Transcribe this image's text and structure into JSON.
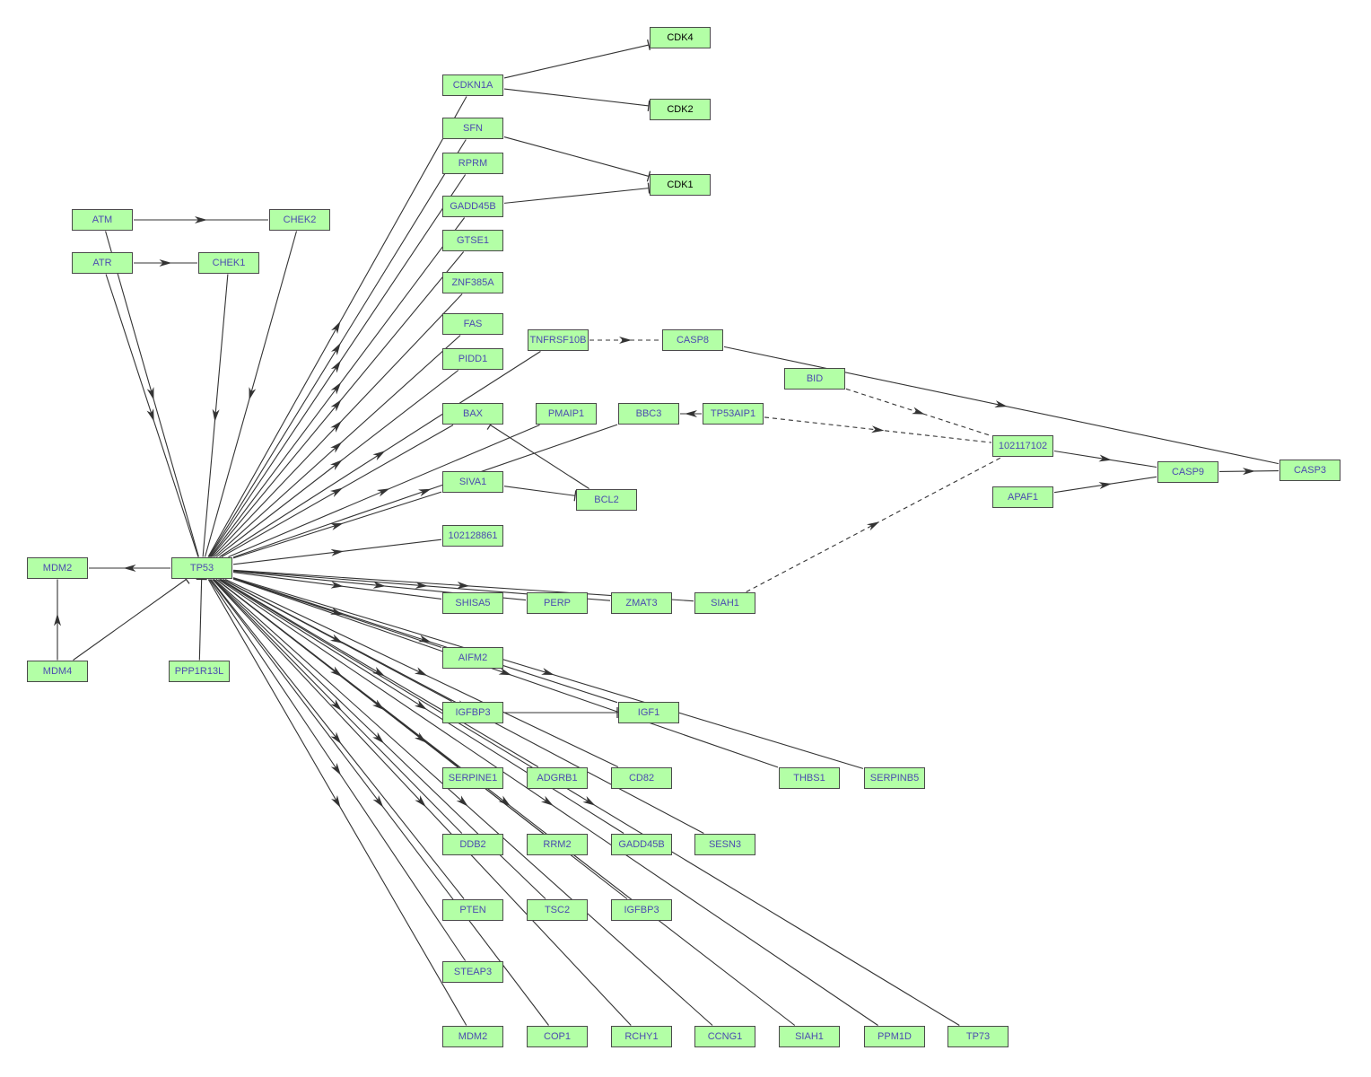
{
  "colors": {
    "node_fill": "#b3ffa6",
    "node_border": "#4a4a4a",
    "gene_text": "#4b4bb0",
    "compound_text": "#000000",
    "edge": "#333333"
  },
  "nodes": [
    {
      "id": "CDK4",
      "label": "CDK4",
      "text": "compound"
    },
    {
      "id": "CDK2",
      "label": "CDK2",
      "text": "compound"
    },
    {
      "id": "CDK1",
      "label": "CDK1",
      "text": "compound"
    },
    {
      "id": "CDKN1A",
      "label": "CDKN1A"
    },
    {
      "id": "SFN",
      "label": "SFN"
    },
    {
      "id": "RPRM",
      "label": "RPRM"
    },
    {
      "id": "GADD45B",
      "label": "GADD45B"
    },
    {
      "id": "GTSE1",
      "label": "GTSE1"
    },
    {
      "id": "ZNF385A",
      "label": "ZNF385A"
    },
    {
      "id": "FAS",
      "label": "FAS"
    },
    {
      "id": "PIDD1",
      "label": "PIDD1"
    },
    {
      "id": "BAX",
      "label": "BAX"
    },
    {
      "id": "SIVA1",
      "label": "SIVA1"
    },
    {
      "id": "N102128861",
      "label": "102128861"
    },
    {
      "id": "SHISA5",
      "label": "SHISA5"
    },
    {
      "id": "AIFM2",
      "label": "AIFM2"
    },
    {
      "id": "IGFBP3",
      "label": "IGFBP3"
    },
    {
      "id": "SERPINE1",
      "label": "SERPINE1"
    },
    {
      "id": "DDB2",
      "label": "DDB2"
    },
    {
      "id": "PTEN",
      "label": "PTEN"
    },
    {
      "id": "STEAP3",
      "label": "STEAP3"
    },
    {
      "id": "MDM2_b",
      "label": "MDM2"
    },
    {
      "id": "ATM",
      "label": "ATM"
    },
    {
      "id": "CHEK2",
      "label": "CHEK2"
    },
    {
      "id": "ATR",
      "label": "ATR"
    },
    {
      "id": "CHEK1",
      "label": "CHEK1"
    },
    {
      "id": "TNFRSF10B",
      "label": "TNFRSF10B"
    },
    {
      "id": "CASP8",
      "label": "CASP8"
    },
    {
      "id": "BID",
      "label": "BID"
    },
    {
      "id": "PMAIP1",
      "label": "PMAIP1"
    },
    {
      "id": "BBC3",
      "label": "BBC3"
    },
    {
      "id": "TP53AIP1",
      "label": "TP53AIP1"
    },
    {
      "id": "BCL2",
      "label": "BCL2"
    },
    {
      "id": "N102117102",
      "label": "102117102"
    },
    {
      "id": "CASP9",
      "label": "CASP9"
    },
    {
      "id": "CASP3",
      "label": "CASP3"
    },
    {
      "id": "APAF1",
      "label": "APAF1"
    },
    {
      "id": "MDM2",
      "label": "MDM2"
    },
    {
      "id": "TP53",
      "label": "TP53"
    },
    {
      "id": "MDM4",
      "label": "MDM4"
    },
    {
      "id": "PPP1R13L",
      "label": "PPP1R13L"
    },
    {
      "id": "PERP",
      "label": "PERP"
    },
    {
      "id": "ZMAT3",
      "label": "ZMAT3"
    },
    {
      "id": "SIAH1",
      "label": "SIAH1"
    },
    {
      "id": "IGF1",
      "label": "IGF1"
    },
    {
      "id": "THBS1",
      "label": "THBS1"
    },
    {
      "id": "SERPINB5",
      "label": "SERPINB5"
    },
    {
      "id": "ADGRB1",
      "label": "ADGRB1"
    },
    {
      "id": "CD82",
      "label": "CD82"
    },
    {
      "id": "RRM2",
      "label": "RRM2"
    },
    {
      "id": "GADD45B_b",
      "label": "GADD45B"
    },
    {
      "id": "SESN3",
      "label": "SESN3"
    },
    {
      "id": "TSC2",
      "label": "TSC2"
    },
    {
      "id": "IGFBP3_b",
      "label": "IGFBP3"
    },
    {
      "id": "COP1",
      "label": "COP1"
    },
    {
      "id": "RCHY1",
      "label": "RCHY1"
    },
    {
      "id": "CCNG1",
      "label": "CCNG1"
    },
    {
      "id": "SIAH1_b",
      "label": "SIAH1"
    },
    {
      "id": "PPM1D",
      "label": "PPM1D"
    },
    {
      "id": "TP73",
      "label": "TP73"
    }
  ],
  "edges": [
    {
      "from": "ATM",
      "to": "CHEK2",
      "type": "activation"
    },
    {
      "from": "ATR",
      "to": "CHEK1",
      "type": "activation"
    },
    {
      "from": "ATM",
      "to": "TP53",
      "type": "activation"
    },
    {
      "from": "ATR",
      "to": "TP53",
      "type": "activation"
    },
    {
      "from": "CHEK2",
      "to": "TP53",
      "type": "activation"
    },
    {
      "from": "CHEK1",
      "to": "TP53",
      "type": "activation"
    },
    {
      "from": "TP53",
      "to": "MDM2",
      "type": "activation"
    },
    {
      "from": "MDM4",
      "to": "MDM2",
      "type": "activation"
    },
    {
      "from": "MDM4",
      "to": "TP53",
      "type": "inhibition"
    },
    {
      "from": "PPP1R13L",
      "to": "TP53",
      "type": "inhibition"
    },
    {
      "from": "CDKN1A",
      "to": "CDK4",
      "type": "inhibition"
    },
    {
      "from": "CDKN1A",
      "to": "CDK2",
      "type": "inhibition"
    },
    {
      "from": "SFN",
      "to": "CDK1",
      "type": "inhibition"
    },
    {
      "from": "GADD45B",
      "to": "CDK1",
      "type": "inhibition"
    },
    {
      "from": "TNFRSF10B",
      "to": "CASP8",
      "type": "indirect"
    },
    {
      "from": "CASP8",
      "to": "CASP3",
      "type": "activation"
    },
    {
      "from": "BID",
      "to": "N102117102",
      "type": "indirect"
    },
    {
      "from": "TP53AIP1",
      "to": "N102117102",
      "type": "indirect"
    },
    {
      "from": "SIAH1",
      "to": "N102117102",
      "type": "indirect"
    },
    {
      "from": "TP53AIP1",
      "to": "BBC3",
      "type": "activation"
    },
    {
      "from": "BCL2",
      "to": "BAX",
      "type": "inhibition"
    },
    {
      "from": "SIVA1",
      "to": "BCL2",
      "type": "inhibition"
    },
    {
      "from": "N102117102",
      "to": "CASP9",
      "type": "activation"
    },
    {
      "from": "APAF1",
      "to": "CASP9",
      "type": "activation"
    },
    {
      "from": "CASP9",
      "to": "CASP3",
      "type": "activation"
    },
    {
      "from": "IGFBP3",
      "to": "IGF1",
      "type": "inhibition"
    },
    {
      "from": "TP53",
      "to": "CDKN1A",
      "type": "activation"
    },
    {
      "from": "TP53",
      "to": "SFN",
      "type": "activation"
    },
    {
      "from": "TP53",
      "to": "RPRM",
      "type": "activation"
    },
    {
      "from": "TP53",
      "to": "GADD45B",
      "type": "activation"
    },
    {
      "from": "TP53",
      "to": "GTSE1",
      "type": "activation"
    },
    {
      "from": "TP53",
      "to": "ZNF385A",
      "type": "activation"
    },
    {
      "from": "TP53",
      "to": "FAS",
      "type": "activation"
    },
    {
      "from": "TP53",
      "to": "PIDD1",
      "type": "activation"
    },
    {
      "from": "TP53",
      "to": "TNFRSF10B",
      "type": "activation"
    },
    {
      "from": "TP53",
      "to": "BAX",
      "type": "activation"
    },
    {
      "from": "TP53",
      "to": "PMAIP1",
      "type": "activation"
    },
    {
      "from": "TP53",
      "to": "BBC3",
      "type": "activation"
    },
    {
      "from": "TP53",
      "to": "SIVA1",
      "type": "activation"
    },
    {
      "from": "TP53",
      "to": "N102128861",
      "type": "activation"
    },
    {
      "from": "TP53",
      "to": "SHISA5",
      "type": "activation"
    },
    {
      "from": "TP53",
      "to": "PERP",
      "type": "activation"
    },
    {
      "from": "TP53",
      "to": "ZMAT3",
      "type": "activation"
    },
    {
      "from": "TP53",
      "to": "SIAH1",
      "type": "activation"
    },
    {
      "from": "TP53",
      "to": "AIFM2",
      "type": "activation"
    },
    {
      "from": "TP53",
      "to": "IGF1",
      "type": "activation"
    },
    {
      "from": "TP53",
      "to": "SERPINB5",
      "type": "activation"
    },
    {
      "from": "TP53",
      "to": "IGFBP3",
      "type": "activation"
    },
    {
      "from": "TP53",
      "to": "THBS1",
      "type": "activation"
    },
    {
      "from": "TP53",
      "to": "CD82",
      "type": "activation"
    },
    {
      "from": "TP53",
      "to": "ADGRB1",
      "type": "activation"
    },
    {
      "from": "TP53",
      "to": "SESN3",
      "type": "activation"
    },
    {
      "from": "TP53",
      "to": "SERPINE1",
      "type": "activation"
    },
    {
      "from": "TP53",
      "to": "GADD45B_b",
      "type": "activation"
    },
    {
      "from": "TP53",
      "to": "RRM2",
      "type": "activation"
    },
    {
      "from": "TP53",
      "to": "IGFBP3_b",
      "type": "activation"
    },
    {
      "from": "TP53",
      "to": "DDB2",
      "type": "activation"
    },
    {
      "from": "TP53",
      "to": "TSC2",
      "type": "activation"
    },
    {
      "from": "TP53",
      "to": "PTEN",
      "type": "activation"
    },
    {
      "from": "TP53",
      "to": "STEAP3",
      "type": "activation"
    },
    {
      "from": "TP53",
      "to": "MDM2_b",
      "type": "activation"
    },
    {
      "from": "TP53",
      "to": "COP1",
      "type": "activation"
    },
    {
      "from": "TP53",
      "to": "RCHY1",
      "type": "activation"
    },
    {
      "from": "TP53",
      "to": "CCNG1",
      "type": "activation"
    },
    {
      "from": "TP53",
      "to": "SIAH1_b",
      "type": "activation"
    },
    {
      "from": "TP53",
      "to": "PPM1D",
      "type": "activation"
    },
    {
      "from": "TP53",
      "to": "TP73",
      "type": "activation"
    }
  ]
}
